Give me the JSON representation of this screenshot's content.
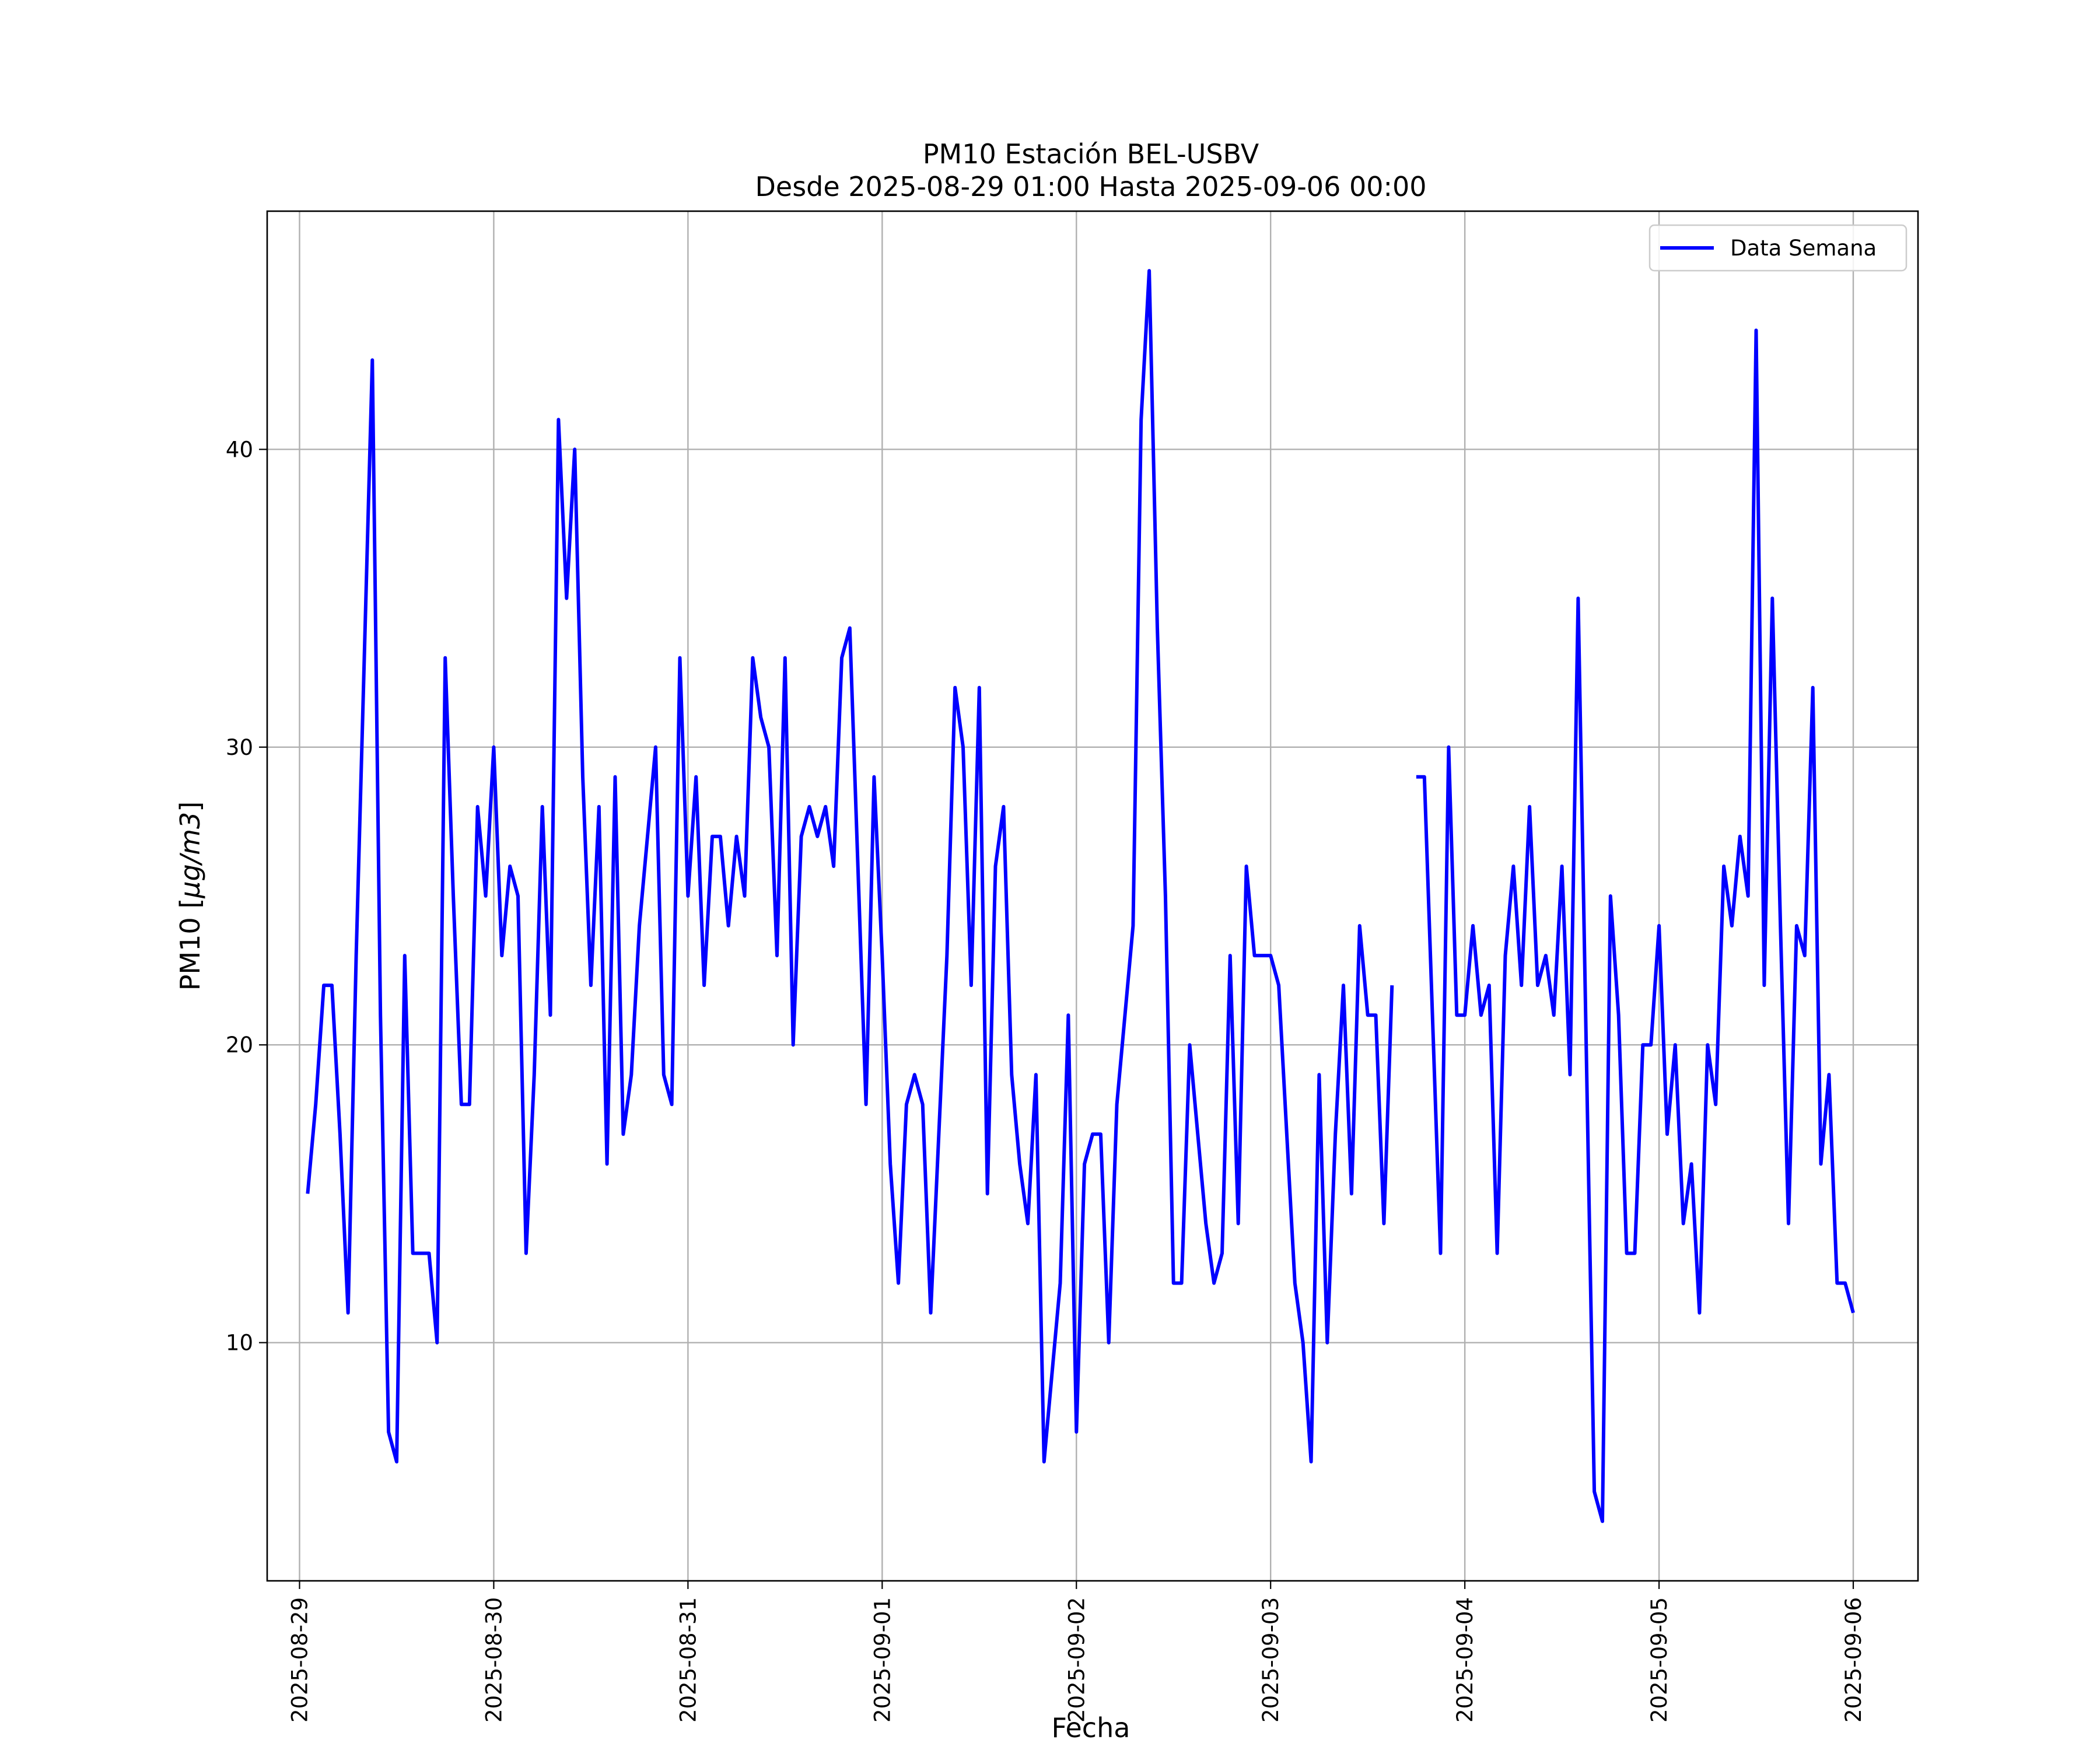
{
  "chart_data": {
    "type": "line",
    "title": "PM10 Estación BEL-USBV",
    "subtitle": "Desde 2025-08-29 01:00 Hasta 2025-09-06 00:00",
    "xlabel": "Fecha",
    "ylabel_prefix": "PM10 [",
    "ylabel_unit": "μg/m3",
    "ylabel_suffix": "]",
    "x_ticks": [
      "2025-08-29",
      "2025-08-30",
      "2025-08-31",
      "2025-09-01",
      "2025-09-02",
      "2025-09-03",
      "2025-09-04",
      "2025-09-05",
      "2025-09-06"
    ],
    "y_ticks": [
      10,
      20,
      30,
      40
    ],
    "xlim": [
      "2025-08-28 20:00",
      "2025-09-06 08:00"
    ],
    "ylim": [
      2,
      48
    ],
    "grid": true,
    "legend_position": "top-right",
    "series": [
      {
        "name": "Data Semana",
        "color": "#0000ff",
        "points": [
          [
            "2025-08-29 01:00",
            15
          ],
          [
            "2025-08-29 02:00",
            18
          ],
          [
            "2025-08-29 03:00",
            22
          ],
          [
            "2025-08-29 04:00",
            22
          ],
          [
            "2025-08-29 05:00",
            17
          ],
          [
            "2025-08-29 06:00",
            11
          ],
          [
            "2025-08-29 07:00",
            23
          ],
          [
            "2025-08-29 08:00",
            33
          ],
          [
            "2025-08-29 09:00",
            43
          ],
          [
            "2025-08-29 10:00",
            21
          ],
          [
            "2025-08-29 11:00",
            7
          ],
          [
            "2025-08-29 12:00",
            6
          ],
          [
            "2025-08-29 13:00",
            23
          ],
          [
            "2025-08-29 14:00",
            13
          ],
          [
            "2025-08-29 15:00",
            13
          ],
          [
            "2025-08-29 16:00",
            13
          ],
          [
            "2025-08-29 17:00",
            10
          ],
          [
            "2025-08-29 18:00",
            33
          ],
          [
            "2025-08-29 19:00",
            25
          ],
          [
            "2025-08-29 20:00",
            18
          ],
          [
            "2025-08-29 21:00",
            18
          ],
          [
            "2025-08-29 22:00",
            28
          ],
          [
            "2025-08-29 23:00",
            25
          ],
          [
            "2025-08-30 00:00",
            30
          ],
          [
            "2025-08-30 01:00",
            23
          ],
          [
            "2025-08-30 02:00",
            26
          ],
          [
            "2025-08-30 03:00",
            25
          ],
          [
            "2025-08-30 04:00",
            13
          ],
          [
            "2025-08-30 05:00",
            19
          ],
          [
            "2025-08-30 06:00",
            28
          ],
          [
            "2025-08-30 07:00",
            21
          ],
          [
            "2025-08-30 08:00",
            41
          ],
          [
            "2025-08-30 09:00",
            35
          ],
          [
            "2025-08-30 10:00",
            40
          ],
          [
            "2025-08-30 11:00",
            29
          ],
          [
            "2025-08-30 12:00",
            22
          ],
          [
            "2025-08-30 13:00",
            28
          ],
          [
            "2025-08-30 14:00",
            16
          ],
          [
            "2025-08-30 15:00",
            29
          ],
          [
            "2025-08-30 16:00",
            17
          ],
          [
            "2025-08-30 17:00",
            19
          ],
          [
            "2025-08-30 18:00",
            24
          ],
          [
            "2025-08-30 19:00",
            27
          ],
          [
            "2025-08-30 20:00",
            30
          ],
          [
            "2025-08-30 21:00",
            19
          ],
          [
            "2025-08-30 22:00",
            18
          ],
          [
            "2025-08-30 23:00",
            33
          ],
          [
            "2025-08-31 00:00",
            25
          ],
          [
            "2025-08-31 01:00",
            29
          ],
          [
            "2025-08-31 02:00",
            22
          ],
          [
            "2025-08-31 03:00",
            27
          ],
          [
            "2025-08-31 04:00",
            27
          ],
          [
            "2025-08-31 05:00",
            24
          ],
          [
            "2025-08-31 06:00",
            27
          ],
          [
            "2025-08-31 07:00",
            25
          ],
          [
            "2025-08-31 08:00",
            33
          ],
          [
            "2025-08-31 09:00",
            31
          ],
          [
            "2025-08-31 10:00",
            30
          ],
          [
            "2025-08-31 11:00",
            23
          ],
          [
            "2025-08-31 12:00",
            33
          ],
          [
            "2025-08-31 13:00",
            20
          ],
          [
            "2025-08-31 14:00",
            27
          ],
          [
            "2025-08-31 15:00",
            28
          ],
          [
            "2025-08-31 16:00",
            27
          ],
          [
            "2025-08-31 17:00",
            28
          ],
          [
            "2025-08-31 18:00",
            26
          ],
          [
            "2025-08-31 19:00",
            33
          ],
          [
            "2025-08-31 20:00",
            34
          ],
          [
            "2025-08-31 21:00",
            26
          ],
          [
            "2025-08-31 22:00",
            18
          ],
          [
            "2025-08-31 23:00",
            29
          ],
          [
            "2025-09-01 00:00",
            23
          ],
          [
            "2025-09-01 01:00",
            16
          ],
          [
            "2025-09-01 02:00",
            12
          ],
          [
            "2025-09-01 03:00",
            18
          ],
          [
            "2025-09-01 04:00",
            19
          ],
          [
            "2025-09-01 05:00",
            18
          ],
          [
            "2025-09-01 06:00",
            11
          ],
          [
            "2025-09-01 07:00",
            17
          ],
          [
            "2025-09-01 08:00",
            23
          ],
          [
            "2025-09-01 09:00",
            32
          ],
          [
            "2025-09-01 10:00",
            30
          ],
          [
            "2025-09-01 11:00",
            22
          ],
          [
            "2025-09-01 12:00",
            32
          ],
          [
            "2025-09-01 13:00",
            15
          ],
          [
            "2025-09-01 14:00",
            26
          ],
          [
            "2025-09-01 15:00",
            28
          ],
          [
            "2025-09-01 16:00",
            19
          ],
          [
            "2025-09-01 17:00",
            16
          ],
          [
            "2025-09-01 18:00",
            14
          ],
          [
            "2025-09-01 19:00",
            19
          ],
          [
            "2025-09-01 20:00",
            6
          ],
          [
            "2025-09-01 21:00",
            9
          ],
          [
            "2025-09-01 22:00",
            12
          ],
          [
            "2025-09-01 23:00",
            21
          ],
          [
            "2025-09-02 00:00",
            7
          ],
          [
            "2025-09-02 01:00",
            16
          ],
          [
            "2025-09-02 02:00",
            17
          ],
          [
            "2025-09-02 03:00",
            17
          ],
          [
            "2025-09-02 04:00",
            10
          ],
          [
            "2025-09-02 05:00",
            18
          ],
          [
            "2025-09-02 06:00",
            21
          ],
          [
            "2025-09-02 07:00",
            24
          ],
          [
            "2025-09-02 08:00",
            41
          ],
          [
            "2025-09-02 09:00",
            46
          ],
          [
            "2025-09-02 10:00",
            34
          ],
          [
            "2025-09-02 11:00",
            25
          ],
          [
            "2025-09-02 12:00",
            12
          ],
          [
            "2025-09-02 13:00",
            12
          ],
          [
            "2025-09-02 14:00",
            20
          ],
          [
            "2025-09-02 15:00",
            17
          ],
          [
            "2025-09-02 16:00",
            14
          ],
          [
            "2025-09-02 17:00",
            12
          ],
          [
            "2025-09-02 18:00",
            13
          ],
          [
            "2025-09-02 19:00",
            23
          ],
          [
            "2025-09-02 20:00",
            14
          ],
          [
            "2025-09-02 21:00",
            26
          ],
          [
            "2025-09-02 22:00",
            23
          ],
          [
            "2025-09-02 23:00",
            23
          ],
          [
            "2025-09-03 00:00",
            23
          ],
          [
            "2025-09-03 01:00",
            22
          ],
          [
            "2025-09-03 02:00",
            17
          ],
          [
            "2025-09-03 03:00",
            12
          ],
          [
            "2025-09-03 04:00",
            10
          ],
          [
            "2025-09-03 05:00",
            6
          ],
          [
            "2025-09-03 06:00",
            19
          ],
          [
            "2025-09-03 07:00",
            10
          ],
          [
            "2025-09-03 08:00",
            17
          ],
          [
            "2025-09-03 09:00",
            22
          ],
          [
            "2025-09-03 10:00",
            15
          ],
          [
            "2025-09-03 11:00",
            24
          ],
          [
            "2025-09-03 12:00",
            21
          ],
          [
            "2025-09-03 13:00",
            21
          ],
          [
            "2025-09-03 14:00",
            14
          ],
          [
            "2025-09-03 15:00",
            22
          ],
          [
            "2025-09-03 16:00",
            null
          ],
          [
            "2025-09-03 17:00",
            null
          ],
          [
            "2025-09-03 18:00",
            29
          ],
          [
            "2025-09-03 19:00",
            29
          ],
          [
            "2025-09-03 20:00",
            21
          ],
          [
            "2025-09-03 21:00",
            13
          ],
          [
            "2025-09-03 22:00",
            30
          ],
          [
            "2025-09-03 23:00",
            21
          ],
          [
            "2025-09-04 00:00",
            21
          ],
          [
            "2025-09-04 01:00",
            24
          ],
          [
            "2025-09-04 02:00",
            21
          ],
          [
            "2025-09-04 03:00",
            22
          ],
          [
            "2025-09-04 04:00",
            13
          ],
          [
            "2025-09-04 05:00",
            23
          ],
          [
            "2025-09-04 06:00",
            26
          ],
          [
            "2025-09-04 07:00",
            22
          ],
          [
            "2025-09-04 08:00",
            28
          ],
          [
            "2025-09-04 09:00",
            22
          ],
          [
            "2025-09-04 10:00",
            23
          ],
          [
            "2025-09-04 11:00",
            21
          ],
          [
            "2025-09-04 12:00",
            26
          ],
          [
            "2025-09-04 13:00",
            19
          ],
          [
            "2025-09-04 14:00",
            35
          ],
          [
            "2025-09-04 15:00",
            20
          ],
          [
            "2025-09-04 16:00",
            5
          ],
          [
            "2025-09-04 17:00",
            4
          ],
          [
            "2025-09-04 18:00",
            25
          ],
          [
            "2025-09-04 19:00",
            21
          ],
          [
            "2025-09-04 20:00",
            13
          ],
          [
            "2025-09-04 21:00",
            13
          ],
          [
            "2025-09-04 22:00",
            20
          ],
          [
            "2025-09-04 23:00",
            20
          ],
          [
            "2025-09-05 00:00",
            24
          ],
          [
            "2025-09-05 01:00",
            17
          ],
          [
            "2025-09-05 02:00",
            20
          ],
          [
            "2025-09-05 03:00",
            14
          ],
          [
            "2025-09-05 04:00",
            16
          ],
          [
            "2025-09-05 05:00",
            11
          ],
          [
            "2025-09-05 06:00",
            20
          ],
          [
            "2025-09-05 07:00",
            18
          ],
          [
            "2025-09-05 08:00",
            26
          ],
          [
            "2025-09-05 09:00",
            24
          ],
          [
            "2025-09-05 10:00",
            27
          ],
          [
            "2025-09-05 11:00",
            25
          ],
          [
            "2025-09-05 12:00",
            44
          ],
          [
            "2025-09-05 13:00",
            22
          ],
          [
            "2025-09-05 14:00",
            35
          ],
          [
            "2025-09-05 15:00",
            24
          ],
          [
            "2025-09-05 16:00",
            14
          ],
          [
            "2025-09-05 17:00",
            24
          ],
          [
            "2025-09-05 18:00",
            23
          ],
          [
            "2025-09-05 19:00",
            32
          ],
          [
            "2025-09-05 20:00",
            16
          ],
          [
            "2025-09-05 21:00",
            19
          ],
          [
            "2025-09-05 22:00",
            12
          ],
          [
            "2025-09-05 23:00",
            12
          ],
          [
            "2025-09-06 00:00",
            11
          ]
        ]
      }
    ]
  }
}
